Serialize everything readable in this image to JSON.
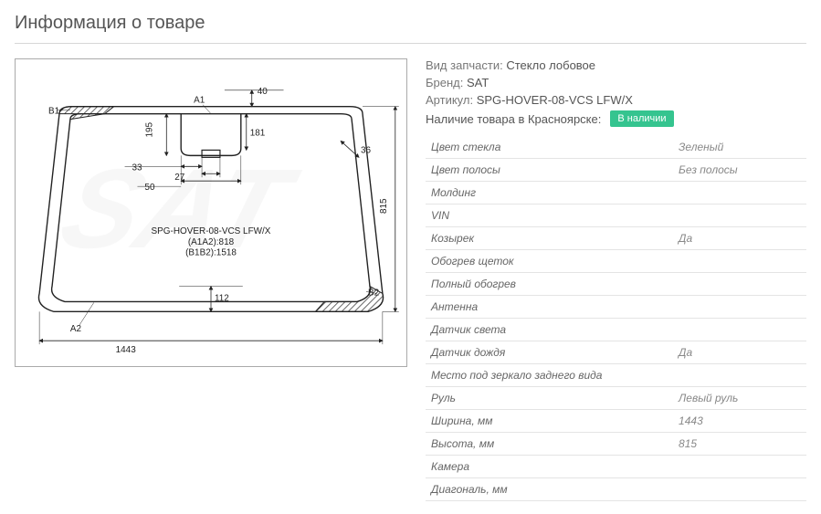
{
  "title": "Информация о товаре",
  "info": {
    "partType_label": "Вид запчасти:",
    "partType": "Стекло лобовое",
    "brand_label": "Бренд:",
    "brand": "SAT",
    "sku_label": "Артикул:",
    "sku": "SPG-HOVER-08-VCS LFW/X",
    "stock_label": "Наличие товара в Красноярске:",
    "stock_badge": "В наличии"
  },
  "specs": [
    {
      "label": "Цвет стекла",
      "value": "Зеленый"
    },
    {
      "label": "Цвет полосы",
      "value": "Без полосы"
    },
    {
      "label": "Молдинг",
      "value": ""
    },
    {
      "label": "VIN",
      "value": ""
    },
    {
      "label": "Козырек",
      "value": "Да"
    },
    {
      "label": "Обогрев щеток",
      "value": ""
    },
    {
      "label": "Полный обогрев",
      "value": ""
    },
    {
      "label": "Антенна",
      "value": ""
    },
    {
      "label": "Датчик света",
      "value": ""
    },
    {
      "label": "Датчик дождя",
      "value": "Да"
    },
    {
      "label": "Место под зеркало заднего вида",
      "value": ""
    },
    {
      "label": "Руль",
      "value": "Левый руль"
    },
    {
      "label": "Ширина, мм",
      "value": "1443"
    },
    {
      "label": "Высота, мм",
      "value": "815"
    },
    {
      "label": "Камера",
      "value": ""
    },
    {
      "label": "Диагональ, мм",
      "value": ""
    }
  ],
  "diagram": {
    "product_label1": "SPG-HOVER-08-VCS LFW/X",
    "product_label2": "(A1A2):818",
    "product_label3": "(B1B2):1518",
    "tag_B1": "B1",
    "tag_A1": "A1",
    "tag_A2": "A2",
    "tag_B2": "B2",
    "dim_40": "40",
    "dim_195": "195",
    "dim_181": "181",
    "dim_33": "33",
    "dim_27": "27",
    "dim_50": "50",
    "dim_36": "36",
    "dim_815": "815",
    "dim_112": "112",
    "dim_1443": "1443",
    "colors": {
      "line": "#222222",
      "hatch": "#222222",
      "bg": "#ffffff"
    }
  }
}
